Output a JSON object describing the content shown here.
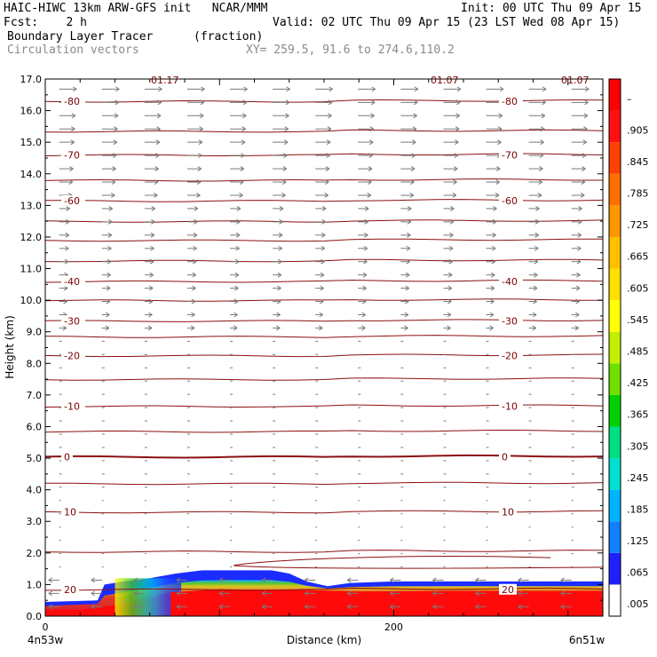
{
  "header": {
    "line1_left": "HAIC-HIWC 13km ARW-GFS init   NCAR/MMM",
    "line1_right": "Init: 00 UTC Thu 09 Apr 15",
    "line2_left": "Fcst:    2 h",
    "line2_right": "Valid: 02 UTC Thu 09 Apr 15 (23 LST Wed 08 Apr 15)",
    "line3_left": "Boundary Layer Tracer",
    "line3_mid": "(fraction)",
    "line4_left": "Circulation vectors",
    "line4_mid": "XY= 259.5, 91.6 to 274.6,110.2"
  },
  "chart_data": {
    "type": "heatmap",
    "xlabel": "Distance (km)",
    "ylabel": "Height (km)",
    "xlim": [
      0,
      320
    ],
    "ylim": [
      0,
      17
    ],
    "x_ticks": [
      {
        "v": 0,
        "label": "0"
      },
      {
        "v": 200,
        "label": "200"
      }
    ],
    "x_end_labels": {
      "left": "4n53w",
      "right": "6n51w"
    },
    "y_ticks": [
      "0.0",
      "1.0",
      "2.0",
      "3.0",
      "4.0",
      "5.0",
      "6.0",
      "7.0",
      "8.0",
      "9.0",
      "10.0",
      "11.0",
      "12.0",
      "13.0",
      "14.0",
      "15.0",
      "16.0",
      "17.0"
    ],
    "colorbar": {
      "labels": [
        ".005",
        ".065",
        ".125",
        ".185",
        ".245",
        ".305",
        ".365",
        ".425",
        ".485",
        ".545",
        ".605",
        ".665",
        ".725",
        ".785",
        ".845",
        ".905",
        "–"
      ],
      "colors": [
        "#ffffff",
        "#2020ff",
        "#1080ff",
        "#00b4ff",
        "#00e0d0",
        "#00e080",
        "#00d000",
        "#70e000",
        "#c0f000",
        "#ffff00",
        "#ffe000",
        "#ffc000",
        "#ff9800",
        "#ff7000",
        "#ff4000",
        "#ff1010",
        "#ff0000"
      ]
    },
    "isotherms": [
      {
        "t": "-80",
        "h": 16.3,
        "labeled": true
      },
      {
        "t": "-75",
        "h": 15.35,
        "labeled": false
      },
      {
        "t": "-70",
        "h": 14.6,
        "labeled": true
      },
      {
        "t": "-65",
        "h": 13.8,
        "labeled": false
      },
      {
        "t": "-60",
        "h": 13.15,
        "labeled": true
      },
      {
        "t": "-55",
        "h": 12.5,
        "labeled": false
      },
      {
        "t": "-50",
        "h": 11.9,
        "labeled": false
      },
      {
        "t": "-45",
        "h": 11.25,
        "labeled": false
      },
      {
        "t": "-40",
        "h": 10.6,
        "labeled": true
      },
      {
        "t": "-35",
        "h": 10.0,
        "labeled": false
      },
      {
        "t": "-30",
        "h": 9.35,
        "labeled": true
      },
      {
        "t": "-25",
        "h": 8.85,
        "labeled": false
      },
      {
        "t": "-20",
        "h": 8.25,
        "labeled": true
      },
      {
        "t": "-15",
        "h": 7.5,
        "labeled": false
      },
      {
        "t": "-10",
        "h": 6.65,
        "labeled": true
      },
      {
        "t": "-5",
        "h": 5.85,
        "labeled": false
      },
      {
        "t": "0",
        "h": 5.05,
        "labeled": true
      },
      {
        "t": "5",
        "h": 4.2,
        "labeled": false
      },
      {
        "t": "10",
        "h": 3.3,
        "labeled": true
      },
      {
        "t": "15",
        "h": 2.05,
        "labeled": false
      },
      {
        "t": "20",
        "h": 0.85,
        "labeled": true
      }
    ],
    "top_labels": [
      "01.17",
      "01.07",
      "01.07"
    ],
    "tracer_top_km": [
      [
        0,
        0.45
      ],
      [
        30,
        0.5
      ],
      [
        34,
        1.0
      ],
      [
        45,
        1.1
      ],
      [
        60,
        1.2
      ],
      [
        75,
        1.35
      ],
      [
        90,
        1.45
      ],
      [
        110,
        1.45
      ],
      [
        130,
        1.45
      ],
      [
        140,
        1.35
      ],
      [
        150,
        1.1
      ],
      [
        162,
        0.95
      ],
      [
        175,
        1.05
      ],
      [
        200,
        1.1
      ],
      [
        240,
        1.1
      ],
      [
        280,
        1.1
      ],
      [
        320,
        1.1
      ]
    ],
    "tracer_core_top_km": [
      [
        0,
        0.2
      ],
      [
        20,
        0.2
      ],
      [
        40,
        0.35
      ],
      [
        58,
        0.55
      ],
      [
        72,
        0.75
      ],
      [
        100,
        0.85
      ],
      [
        150,
        0.82
      ],
      [
        180,
        0.78
      ],
      [
        240,
        0.8
      ],
      [
        320,
        0.8
      ]
    ]
  }
}
